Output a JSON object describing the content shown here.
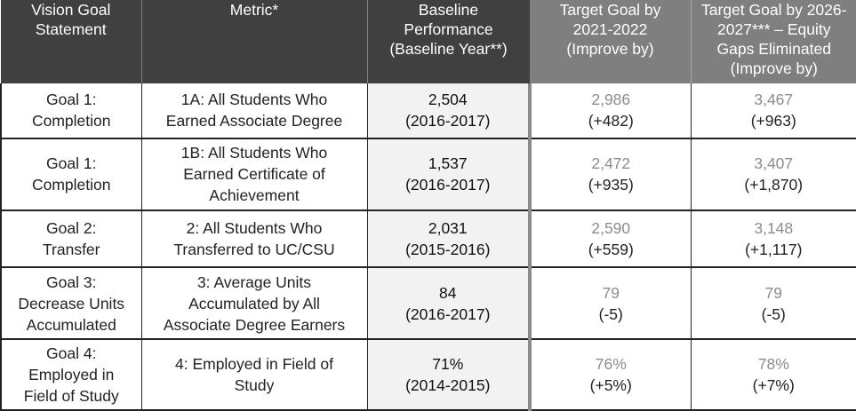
{
  "headers": [
    {
      "lines": [
        "Vision Goal",
        "Statement"
      ]
    },
    {
      "lines": [
        "Metric*"
      ]
    },
    {
      "lines": [
        "Baseline",
        "Performance",
        "(Baseline Year**)"
      ]
    },
    {
      "lines": [
        "Target Goal by",
        "2021-2022",
        "(Improve by)"
      ]
    },
    {
      "lines": [
        "Target Goal by 2026-",
        "2027*** – Equity",
        "Gaps Eliminated",
        "(Improve by)"
      ]
    }
  ],
  "rows": [
    {
      "goal": [
        "Goal 1:",
        "Completion"
      ],
      "metric": [
        "1A: All Students Who",
        "Earned Associate Degree"
      ],
      "baseline": {
        "value": "2,504",
        "year": "(2016-2017)"
      },
      "target_2021": {
        "value": "2,986",
        "improve": "(+482)"
      },
      "target_2026": {
        "value": "3,467",
        "improve": "(+963)"
      }
    },
    {
      "goal": [
        "Goal 1:",
        "Completion"
      ],
      "metric": [
        "1B: All Students Who",
        "Earned Certificate of",
        "Achievement"
      ],
      "baseline": {
        "value": "1,537",
        "year": "(2016-2017)"
      },
      "target_2021": {
        "value": "2,472",
        "improve": "(+935)"
      },
      "target_2026": {
        "value": "3,407",
        "improve": "(+1,870)"
      }
    },
    {
      "goal": [
        "Goal 2:",
        "Transfer"
      ],
      "metric": [
        "2: All Students Who",
        "Transferred to UC/CSU"
      ],
      "baseline": {
        "value": "2,031",
        "year": "(2015-2016)"
      },
      "target_2021": {
        "value": "2,590",
        "improve": "(+559)"
      },
      "target_2026": {
        "value": "3,148",
        "improve": "(+1,117)"
      }
    },
    {
      "goal": [
        "Goal 3:",
        "Decrease Units",
        "Accumulated"
      ],
      "metric": [
        "3: Average Units",
        "Accumulated by All",
        "Associate Degree Earners"
      ],
      "baseline": {
        "value": "84",
        "year": "(2016-2017)"
      },
      "target_2021": {
        "value": "79",
        "improve": "(-5)"
      },
      "target_2026": {
        "value": "79",
        "improve": "(-5)"
      }
    },
    {
      "goal": [
        "Goal 4:",
        "Employed in",
        "Field of Study"
      ],
      "metric": [
        "4: Employed in Field of",
        "Study"
      ],
      "baseline": {
        "value": "71%",
        "year": "(2014-2015)"
      },
      "target_2021": {
        "value": "76%",
        "improve": "(+5%)"
      },
      "target_2026": {
        "value": "78%",
        "improve": "(+7%)"
      }
    }
  ]
}
